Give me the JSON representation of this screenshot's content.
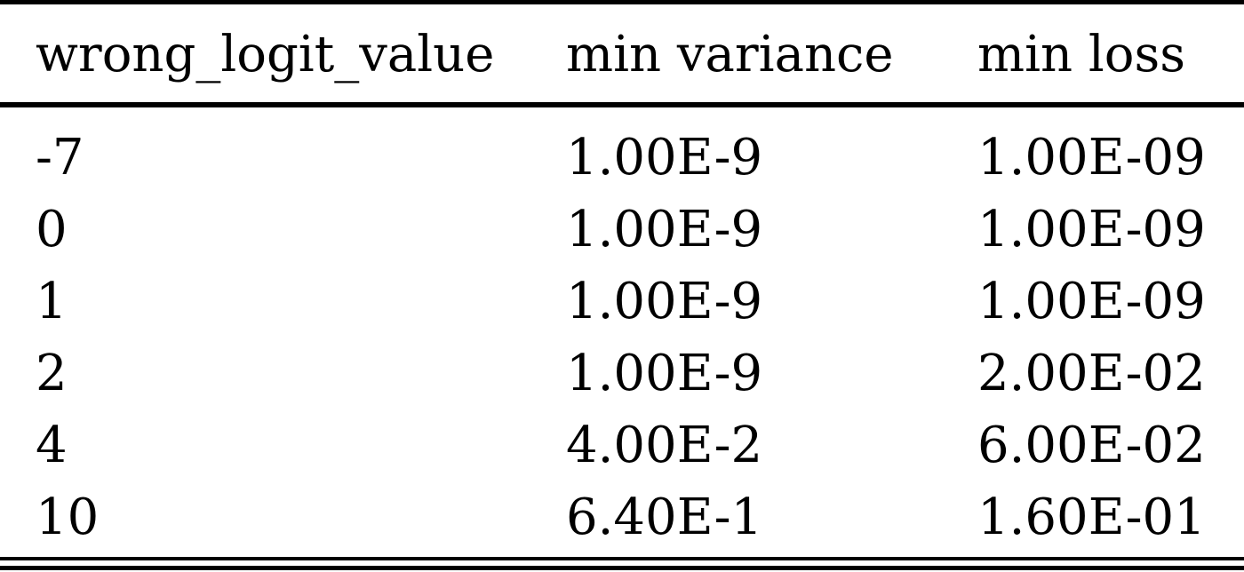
{
  "table": {
    "headers": [
      "wrong_logit_value",
      "min variance",
      "min loss"
    ],
    "rows": [
      [
        "-7",
        "1.00E-9",
        "1.00E-09"
      ],
      [
        "0",
        "1.00E-9",
        "1.00E-09"
      ],
      [
        "1",
        "1.00E-9",
        "1.00E-09"
      ],
      [
        "2",
        "1.00E-9",
        "2.00E-02"
      ],
      [
        "4",
        "4.00E-2",
        "6.00E-02"
      ],
      [
        "10",
        "6.40E-1",
        "1.60E-01"
      ]
    ]
  }
}
